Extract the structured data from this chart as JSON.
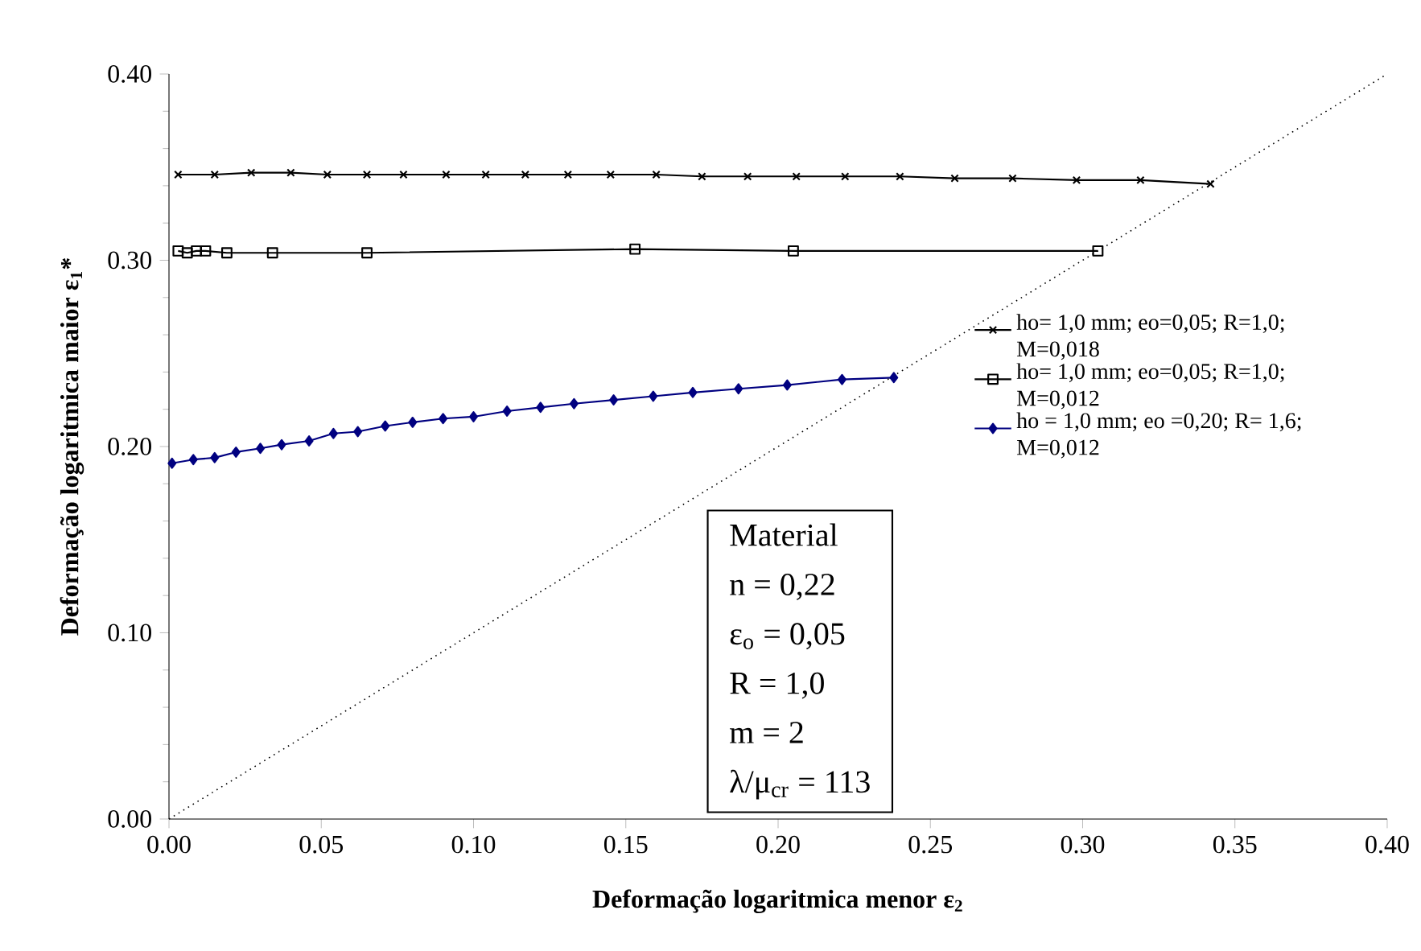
{
  "chart_data": {
    "type": "line",
    "xlabel": "Deformação logaritmica menor  ε$_{2}$",
    "ylabel": "Deformação logaritmica maior  ε$_{1}$*",
    "xlim": [
      0,
      0.4
    ],
    "ylim": [
      0,
      0.4
    ],
    "xticks": [
      {
        "value": 0,
        "label": "0.00"
      },
      {
        "value": 0.05,
        "label": "0.05"
      },
      {
        "value": 0.1,
        "label": "0.10"
      },
      {
        "value": 0.15,
        "label": "0.15"
      },
      {
        "value": 0.2,
        "label": "0.20"
      },
      {
        "value": 0.25,
        "label": "0.25"
      },
      {
        "value": 0.3,
        "label": "0.30"
      },
      {
        "value": 0.35,
        "label": "0.35"
      },
      {
        "value": 0.4,
        "label": "0.40"
      }
    ],
    "yticks": [
      {
        "value": 0,
        "label": "0.00"
      },
      {
        "value": 0.1,
        "label": "0.10"
      },
      {
        "value": 0.2,
        "label": "0.20"
      },
      {
        "value": 0.3,
        "label": "0.30"
      },
      {
        "value": 0.4,
        "label": "0.40"
      }
    ],
    "legend": "right",
    "annotations": [
      "Material",
      "n = 0,22",
      "ε$_{o}$ = 0,05",
      "R = 1,0",
      "m = 2",
      "λ/μ$_{cr}$ = 113"
    ],
    "series": [
      {
        "name": "ho= 1,0 mm; eo=0,05; R=1,0; M=0,018",
        "color": "#000000",
        "marker": "cross",
        "line_style": "solid",
        "x": [
          0.003,
          0.015,
          0.027,
          0.04,
          0.052,
          0.065,
          0.077,
          0.091,
          0.104,
          0.117,
          0.131,
          0.145,
          0.16,
          0.175,
          0.19,
          0.206,
          0.222,
          0.24,
          0.258,
          0.277,
          0.298,
          0.319,
          0.342
        ],
        "values": [
          0.346,
          0.346,
          0.347,
          0.347,
          0.346,
          0.346,
          0.346,
          0.346,
          0.346,
          0.346,
          0.346,
          0.346,
          0.346,
          0.345,
          0.345,
          0.345,
          0.345,
          0.345,
          0.344,
          0.344,
          0.343,
          0.343,
          0.341
        ]
      },
      {
        "name": "ho= 1,0 mm; eo=0,05; R=1,0; M=0,012",
        "color": "#000000",
        "marker": "square",
        "line_style": "solid",
        "x": [
          0.003,
          0.006,
          0.009,
          0.012,
          0.019,
          0.034,
          0.065,
          0.153,
          0.205,
          0.305
        ],
        "values": [
          0.305,
          0.304,
          0.305,
          0.305,
          0.304,
          0.304,
          0.304,
          0.306,
          0.305,
          0.305
        ]
      },
      {
        "name": "ho = 1,0 mm; eo =0,20; R= 1,6; M=0,012",
        "color": "#000080",
        "marker": "diamond",
        "line_style": "solid",
        "x": [
          0.001,
          0.008,
          0.015,
          0.022,
          0.03,
          0.037,
          0.046,
          0.054,
          0.062,
          0.071,
          0.08,
          0.09,
          0.1,
          0.111,
          0.122,
          0.133,
          0.146,
          0.159,
          0.172,
          0.187,
          0.203,
          0.221,
          0.238
        ],
        "values": [
          0.191,
          0.193,
          0.194,
          0.197,
          0.199,
          0.201,
          0.203,
          0.207,
          0.208,
          0.211,
          0.213,
          0.215,
          0.216,
          0.219,
          0.221,
          0.223,
          0.225,
          0.227,
          0.229,
          0.231,
          0.233,
          0.236,
          0.237
        ]
      },
      {
        "color": "#000000",
        "marker": "none",
        "line_style": "dotted",
        "x": [
          0,
          0.4
        ],
        "values": [
          0,
          0.4
        ]
      }
    ]
  }
}
